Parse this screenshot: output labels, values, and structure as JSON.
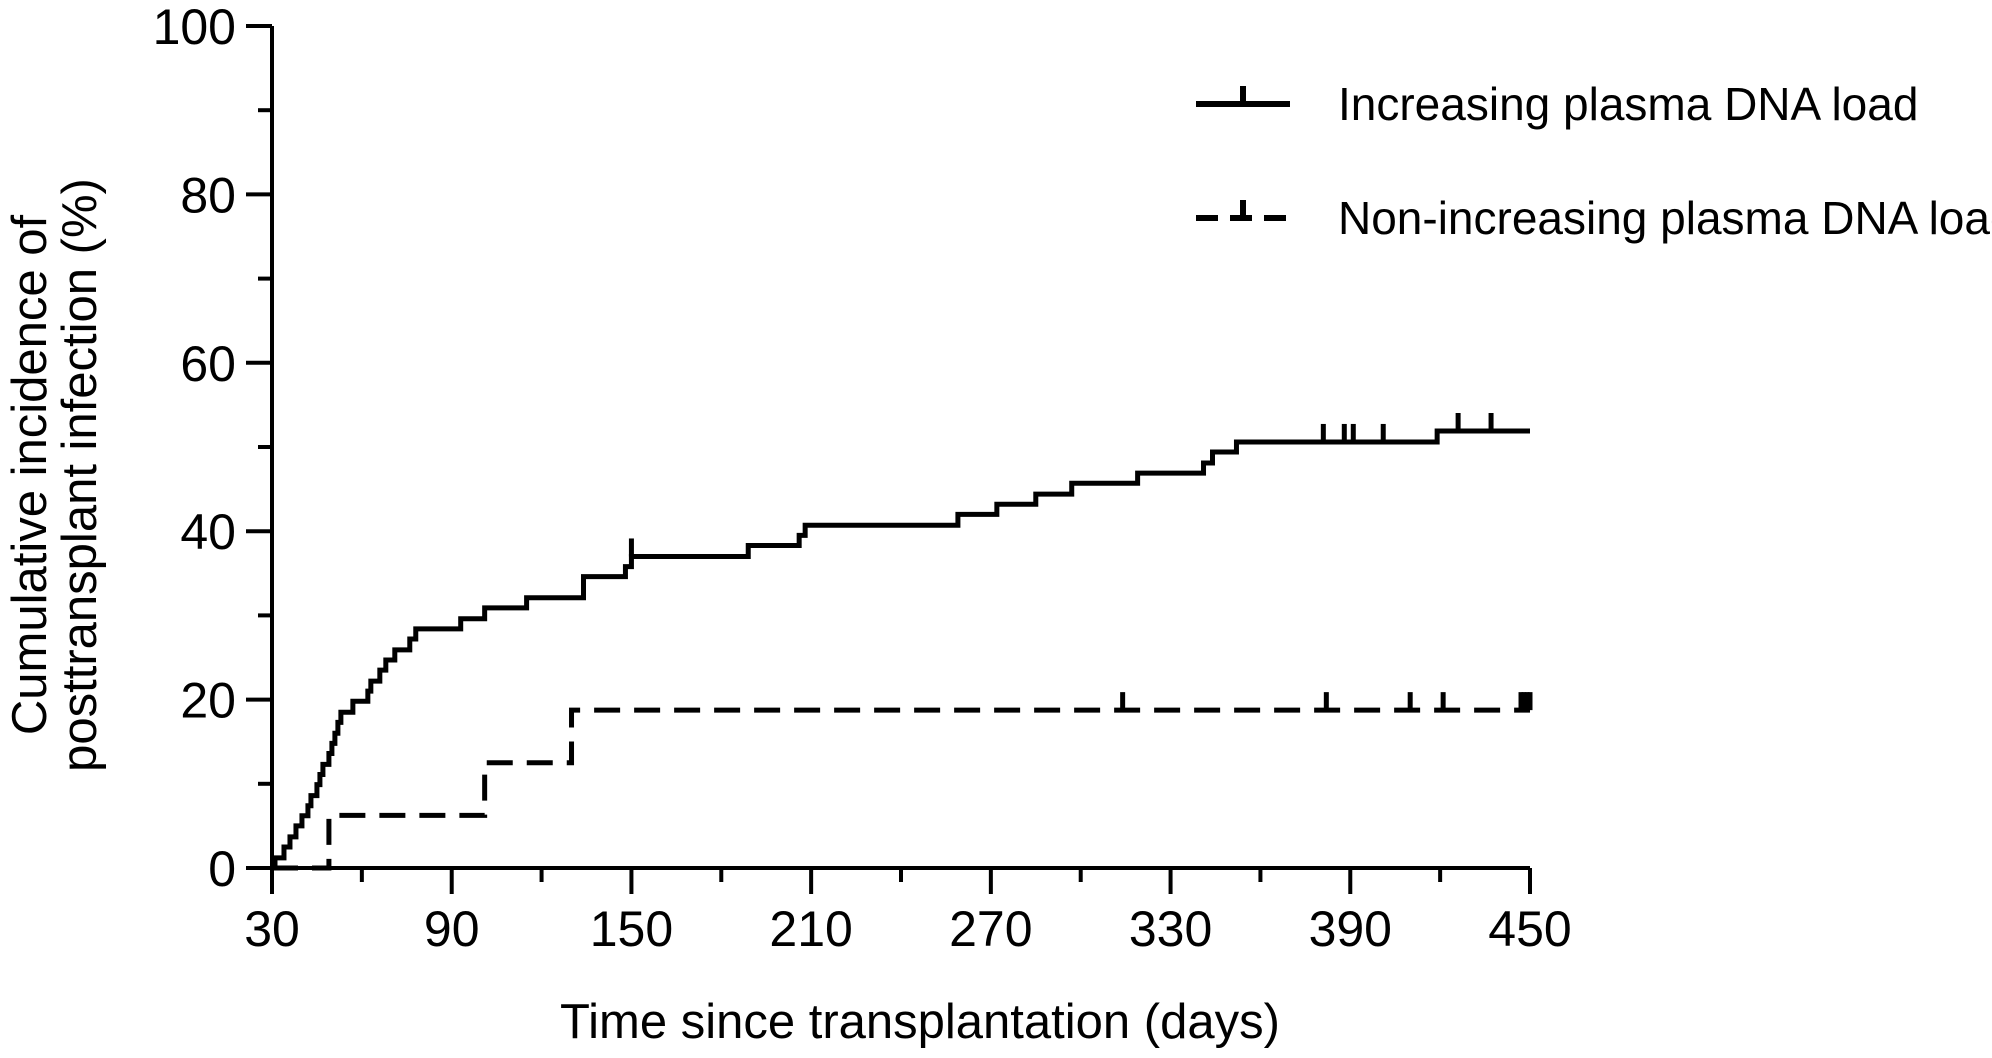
{
  "chart_data": {
    "type": "line",
    "subtype": "step (Kaplan-Meier cumulative incidence)",
    "title": "",
    "xlabel": "Time since transplantation (days)",
    "ylabel_lines": [
      "Cumulative incidence of",
      "posttransplant infection (%)"
    ],
    "xlim": [
      30,
      450
    ],
    "ylim": [
      0,
      100
    ],
    "x_ticks": [
      30,
      90,
      150,
      210,
      270,
      330,
      390,
      450
    ],
    "y_ticks": [
      0,
      20,
      40,
      60,
      80,
      100
    ],
    "grid": false,
    "legend_position": "top-right",
    "series": [
      {
        "name": "Increasing plasma DNA load",
        "style": "solid",
        "color": "#000000",
        "points": [
          [
            30,
            0
          ],
          [
            31,
            1.2
          ],
          [
            34,
            2.5
          ],
          [
            36,
            3.7
          ],
          [
            38,
            5.0
          ],
          [
            40,
            6.2
          ],
          [
            42,
            7.4
          ],
          [
            43,
            8.6
          ],
          [
            45,
            9.9
          ],
          [
            46,
            11.1
          ],
          [
            47,
            12.3
          ],
          [
            49,
            13.6
          ],
          [
            50,
            14.8
          ],
          [
            51,
            16.0
          ],
          [
            52,
            17.3
          ],
          [
            53,
            18.5
          ],
          [
            57,
            19.8
          ],
          [
            62,
            21.0
          ],
          [
            63,
            22.2
          ],
          [
            66,
            23.5
          ],
          [
            68,
            24.7
          ],
          [
            71,
            25.9
          ],
          [
            76,
            27.2
          ],
          [
            78,
            28.4
          ],
          [
            93,
            29.6
          ],
          [
            101,
            30.9
          ],
          [
            115,
            32.1
          ],
          [
            134,
            34.6
          ],
          [
            148,
            35.8
          ],
          [
            150,
            37.0
          ],
          [
            189,
            38.3
          ],
          [
            206,
            39.5
          ],
          [
            208,
            40.7
          ],
          [
            259,
            42.0
          ],
          [
            272,
            43.2
          ],
          [
            285,
            44.4
          ],
          [
            297,
            45.7
          ],
          [
            319,
            46.9
          ],
          [
            341,
            48.1
          ],
          [
            344,
            49.4
          ],
          [
            352,
            50.6
          ],
          [
            419,
            51.9
          ],
          [
            450,
            51.9
          ]
        ],
        "censor_x": [
          150,
          381,
          388,
          391,
          401,
          426,
          437
        ]
      },
      {
        "name": "Non-increasing plasma DNA load",
        "style": "dashed",
        "color": "#000000",
        "points": [
          [
            30,
            0
          ],
          [
            48,
            0
          ],
          [
            49,
            6.25
          ],
          [
            100,
            6.25
          ],
          [
            101,
            12.5
          ],
          [
            129,
            12.5
          ],
          [
            130,
            18.75
          ],
          [
            450,
            18.75
          ]
        ],
        "censor_x": [
          314,
          382,
          410,
          421,
          447,
          448,
          449,
          450
        ]
      }
    ]
  }
}
